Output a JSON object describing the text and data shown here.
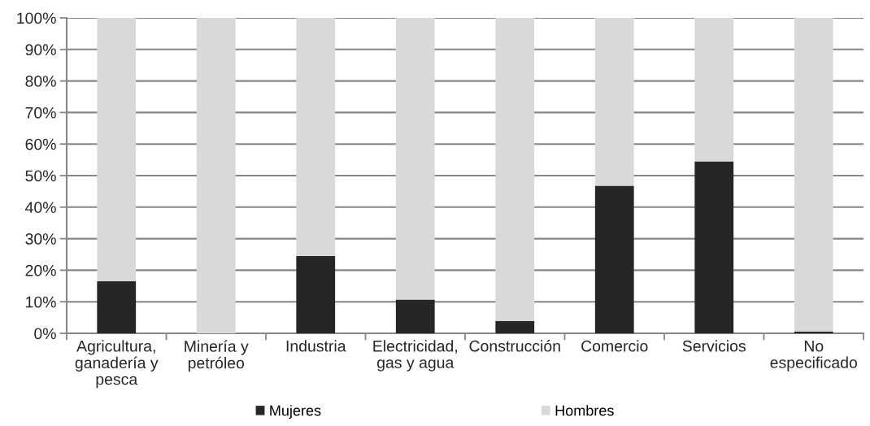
{
  "chart_data": {
    "type": "bar",
    "stacked": true,
    "categories": [
      "Agricultura, ganadería y pesca",
      "Minería y petróleo",
      "Industria",
      "Electricidad, gas y agua",
      "Construcción",
      "Comercio",
      "Servicios",
      "No especificado"
    ],
    "series": [
      {
        "name": "Mujeres",
        "color": "#262626",
        "values": [
          16.5,
          0,
          24.5,
          10.7,
          3.9,
          46.8,
          54.5,
          0.6
        ]
      },
      {
        "name": "Hombres",
        "color": "#d9d9d9",
        "values": [
          83.5,
          100,
          75.5,
          89.3,
          96.1,
          53.2,
          45.5,
          99.4
        ]
      }
    ],
    "ylim": [
      0,
      100
    ],
    "yticks": [
      {
        "value": 0,
        "label": "0%"
      },
      {
        "value": 10,
        "label": "10%"
      },
      {
        "value": 20,
        "label": "20%"
      },
      {
        "value": 30,
        "label": "30%"
      },
      {
        "value": 40,
        "label": "40%"
      },
      {
        "value": 50,
        "label": "50%"
      },
      {
        "value": 60,
        "label": "60%"
      },
      {
        "value": 70,
        "label": "70%"
      },
      {
        "value": 80,
        "label": "80%"
      },
      {
        "value": 90,
        "label": "90%"
      },
      {
        "value": 100,
        "label": "100%"
      }
    ],
    "grid": "y",
    "legend": "bottom"
  }
}
